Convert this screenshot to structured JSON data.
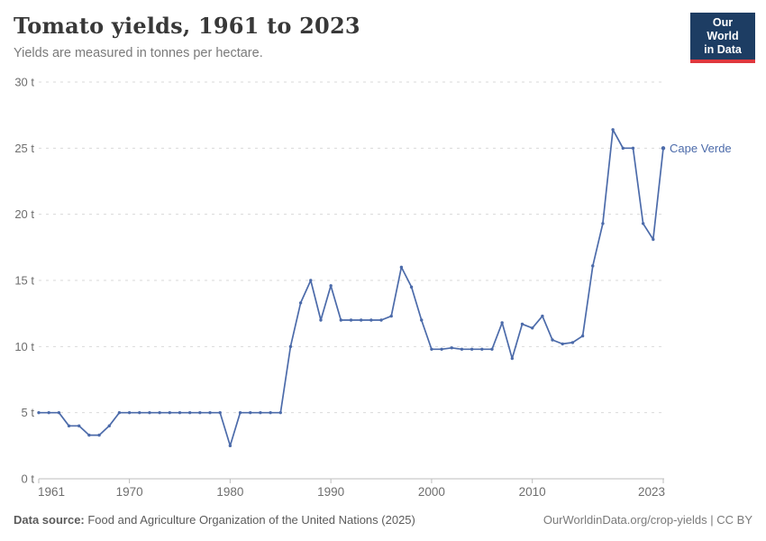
{
  "header": {
    "title": "Tomato yields, 1961 to 2023",
    "subtitle": "Yields are measured in tonnes per hectare."
  },
  "logo": {
    "line1": "Our World",
    "line2": "in Data",
    "bg_color": "#1d3d63",
    "bar_color": "#e0383e",
    "text_color": "#ffffff"
  },
  "footer": {
    "source_label": "Data source:",
    "source_text": " Food and Agriculture Organization of the United Nations (2025)",
    "credit": "OurWorldinData.org/crop-yields | CC BY"
  },
  "chart_data": {
    "type": "line",
    "title": "Tomato yields, 1961 to 2023",
    "unit": "tonnes per hectare",
    "entity_label": "Cape Verde",
    "line_color": "#4c6baa",
    "xlim": [
      1961,
      2023
    ],
    "ylim": [
      0,
      30
    ],
    "xticks": [
      1961,
      1970,
      1980,
      1990,
      2000,
      2010,
      2023
    ],
    "yticks": [
      0,
      5,
      10,
      15,
      20,
      25,
      30
    ],
    "ytick_suffix": " t",
    "grid": "horizontal-dashed",
    "legend_position": "end-of-line-label",
    "series": [
      {
        "name": "Cape Verde",
        "color": "#4c6baa",
        "points": [
          [
            1961,
            5
          ],
          [
            1962,
            5
          ],
          [
            1963,
            5
          ],
          [
            1964,
            4
          ],
          [
            1965,
            4
          ],
          [
            1966,
            3.3
          ],
          [
            1967,
            3.3
          ],
          [
            1968,
            4
          ],
          [
            1969,
            5
          ],
          [
            1970,
            5
          ],
          [
            1971,
            5
          ],
          [
            1972,
            5
          ],
          [
            1973,
            5
          ],
          [
            1974,
            5
          ],
          [
            1975,
            5
          ],
          [
            1976,
            5
          ],
          [
            1977,
            5
          ],
          [
            1978,
            5
          ],
          [
            1979,
            5
          ],
          [
            1980,
            2.5
          ],
          [
            1981,
            5
          ],
          [
            1982,
            5
          ],
          [
            1983,
            5
          ],
          [
            1984,
            5
          ],
          [
            1985,
            5
          ],
          [
            1986,
            10
          ],
          [
            1987,
            13.3
          ],
          [
            1988,
            15
          ],
          [
            1989,
            12
          ],
          [
            1990,
            14.6
          ],
          [
            1991,
            12
          ],
          [
            1992,
            12
          ],
          [
            1993,
            12
          ],
          [
            1994,
            12
          ],
          [
            1995,
            12
          ],
          [
            1996,
            12.3
          ],
          [
            1997,
            16
          ],
          [
            1998,
            14.5
          ],
          [
            1999,
            12
          ],
          [
            2000,
            9.8
          ],
          [
            2001,
            9.8
          ],
          [
            2002,
            9.9
          ],
          [
            2003,
            9.8
          ],
          [
            2004,
            9.8
          ],
          [
            2005,
            9.8
          ],
          [
            2006,
            9.8
          ],
          [
            2007,
            11.8
          ],
          [
            2008,
            9.1
          ],
          [
            2009,
            11.7
          ],
          [
            2010,
            11.4
          ],
          [
            2011,
            12.3
          ],
          [
            2012,
            10.5
          ],
          [
            2013,
            10.2
          ],
          [
            2014,
            10.3
          ],
          [
            2015,
            10.8
          ],
          [
            2016,
            16.1
          ],
          [
            2017,
            19.3
          ],
          [
            2018,
            26.4
          ],
          [
            2019,
            25
          ],
          [
            2020,
            25
          ],
          [
            2021,
            19.3
          ],
          [
            2022,
            18.1
          ],
          [
            2023,
            25
          ]
        ]
      }
    ]
  }
}
